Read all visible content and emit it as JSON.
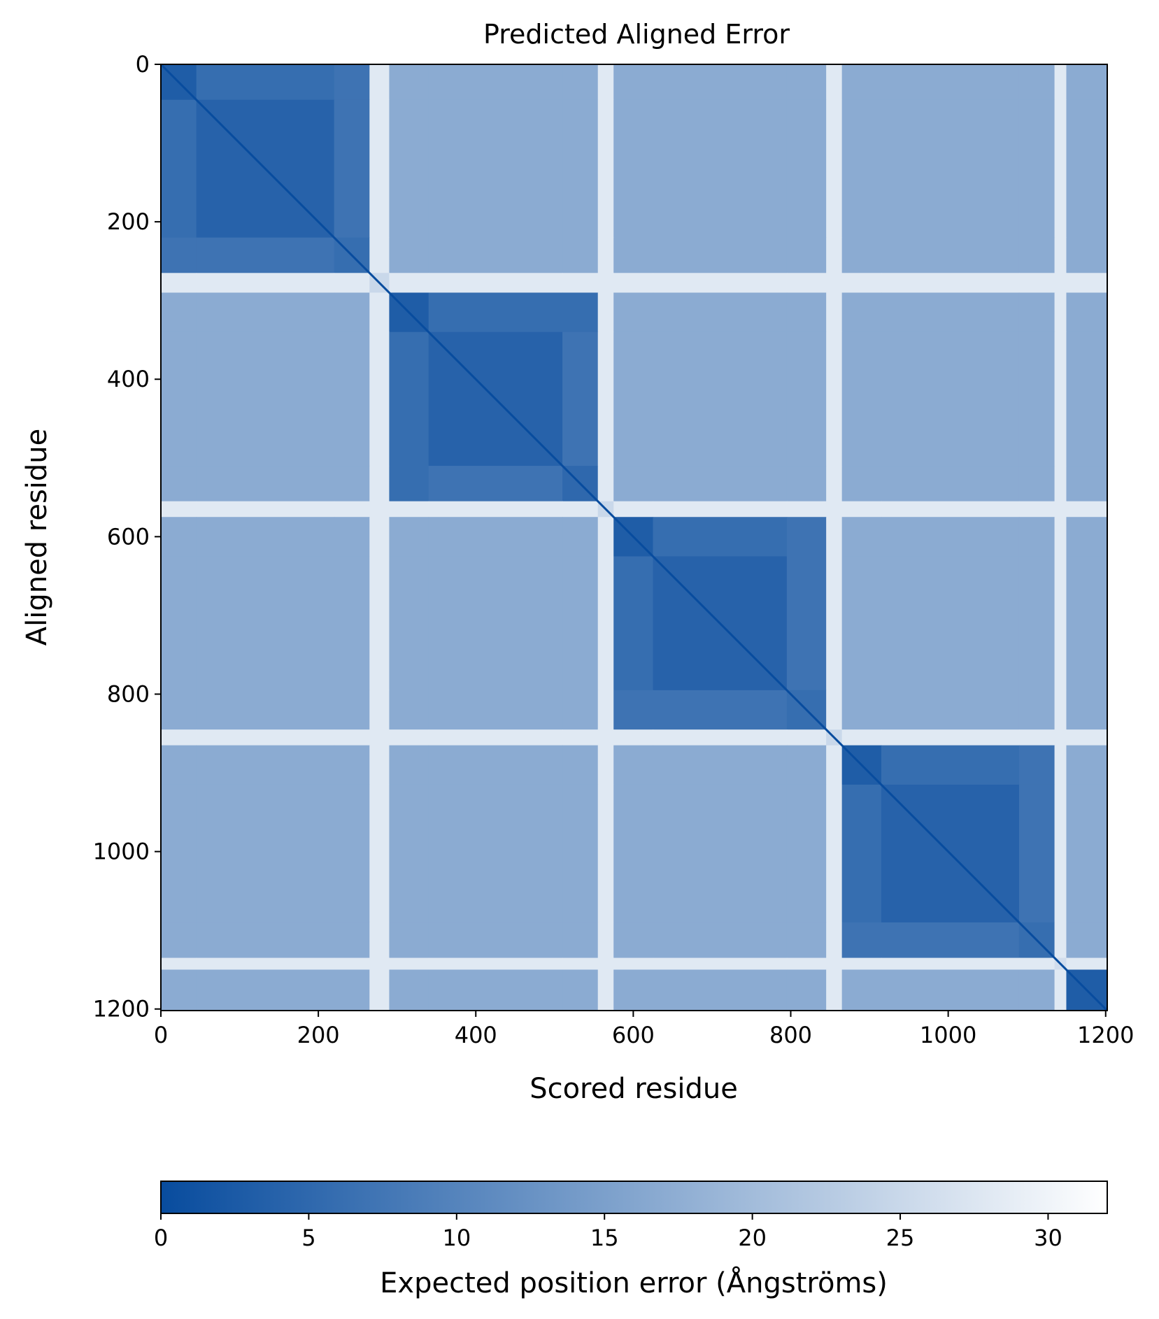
{
  "chart_data": {
    "type": "heatmap",
    "title": "Predicted Aligned Error",
    "xlabel": "Scored residue",
    "ylabel": "Aligned residue",
    "xlim": [
      0,
      1202
    ],
    "ylim": [
      1202,
      0
    ],
    "x_ticks": [
      0,
      200,
      400,
      600,
      800,
      1000,
      1200
    ],
    "y_ticks": [
      0,
      200,
      400,
      600,
      800,
      1000,
      1200
    ],
    "colormap": {
      "name": "Blues_r",
      "low_color": "#084c9e",
      "high_color": "#ffffff"
    },
    "colorbar": {
      "label": "Expected position error (Ångströms)",
      "range": [
        0,
        32
      ],
      "ticks": [
        0,
        5,
        10,
        15,
        20,
        25,
        30
      ],
      "orientation": "horizontal",
      "position": "bottom"
    },
    "n_residues": 1202,
    "domain_boundaries": [
      0,
      290,
      575,
      865,
      1150,
      1202
    ],
    "sub_regions": [
      {
        "start": 0,
        "end": 45,
        "pae": 3
      },
      {
        "start": 45,
        "end": 220,
        "pae": 4
      },
      {
        "start": 220,
        "end": 265,
        "pae": 6
      },
      {
        "start": 265,
        "end": 290,
        "pae": 25
      },
      {
        "start": 290,
        "end": 340,
        "pae": 3
      },
      {
        "start": 340,
        "end": 510,
        "pae": 4
      },
      {
        "start": 510,
        "end": 555,
        "pae": 5
      },
      {
        "start": 555,
        "end": 575,
        "pae": 25
      },
      {
        "start": 575,
        "end": 625,
        "pae": 3
      },
      {
        "start": 625,
        "end": 795,
        "pae": 4
      },
      {
        "start": 795,
        "end": 845,
        "pae": 6
      },
      {
        "start": 845,
        "end": 865,
        "pae": 25
      },
      {
        "start": 865,
        "end": 915,
        "pae": 3
      },
      {
        "start": 915,
        "end": 1090,
        "pae": 4
      },
      {
        "start": 1090,
        "end": 1135,
        "pae": 6
      },
      {
        "start": 1135,
        "end": 1150,
        "pae": 26
      },
      {
        "start": 1150,
        "end": 1202,
        "pae": 3
      }
    ],
    "inter_domain_pae_typical": 17,
    "low_confidence_pae": 30
  }
}
